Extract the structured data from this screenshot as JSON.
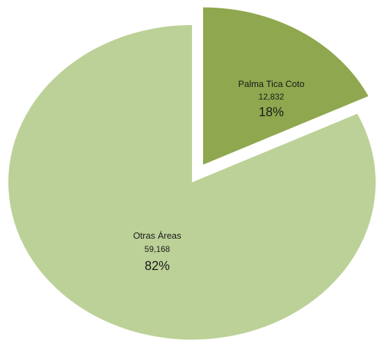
{
  "chart_data": {
    "type": "pie",
    "slices": [
      {
        "label": "Palma Tica Coto",
        "value_text": "12,832",
        "value": 12832,
        "percent_text": "18%",
        "percent": 18,
        "color": "#8fa74e",
        "exploded": true
      },
      {
        "label": "Otras Áreas",
        "value_text": "59,168",
        "value": 59168,
        "percent_text": "82%",
        "percent": 82,
        "color": "#bcd197",
        "exploded": false
      }
    ],
    "start_angle_deg": 0,
    "direction": "clockwise",
    "legend": "none"
  }
}
